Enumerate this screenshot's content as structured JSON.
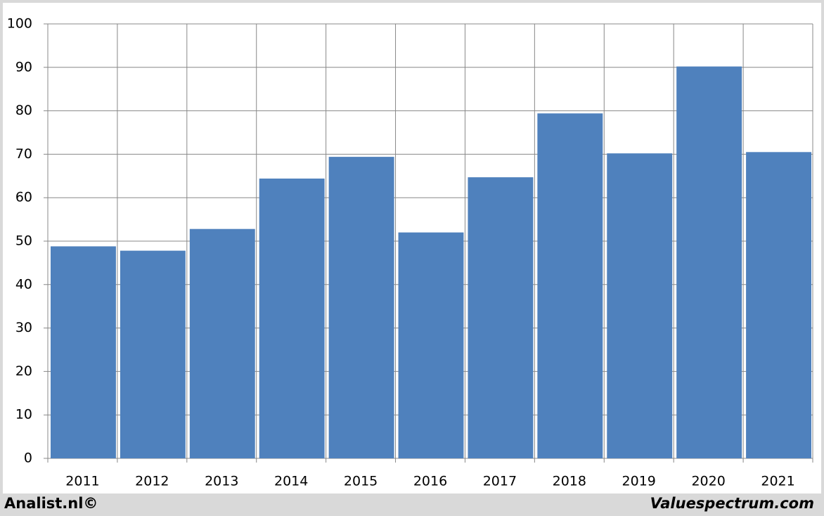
{
  "chart_data": {
    "type": "bar",
    "categories": [
      "2011",
      "2012",
      "2013",
      "2014",
      "2015",
      "2016",
      "2017",
      "2018",
      "2019",
      "2020",
      "2021"
    ],
    "values": [
      48.8,
      47.8,
      52.8,
      64.4,
      69.4,
      52.0,
      64.7,
      79.4,
      70.2,
      90.2,
      70.5
    ],
    "color": "#4f81bd",
    "ylim": [
      0,
      100
    ],
    "yticks": [
      0,
      10,
      20,
      30,
      40,
      50,
      60,
      70,
      80,
      90,
      100
    ],
    "grid": true
  },
  "footer": {
    "left": "Analist.nl©",
    "right": "Valuespectrum.com"
  }
}
